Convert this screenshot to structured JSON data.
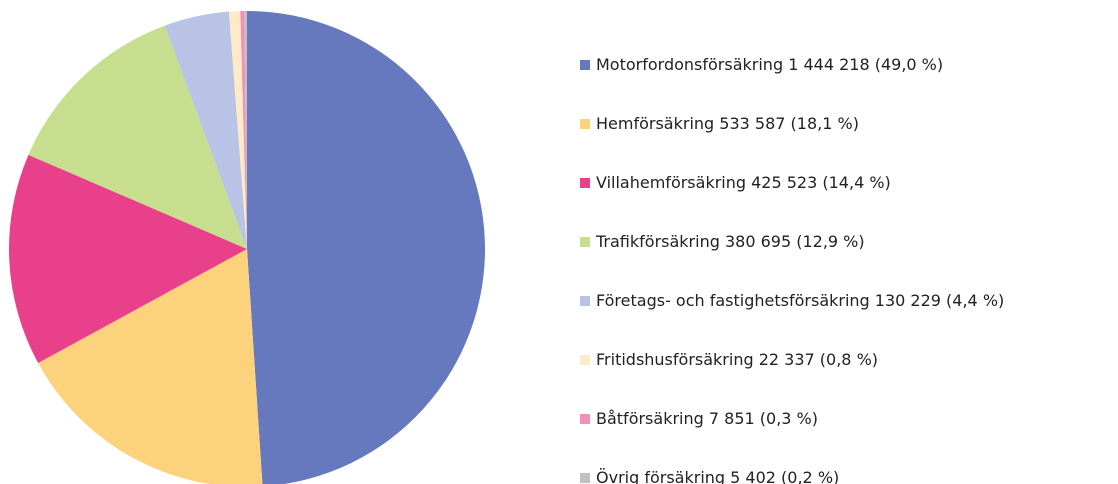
{
  "chart_data": {
    "type": "pie",
    "categories": [
      "Motorfordonsförsäkring",
      "Hemförsäkring",
      "Villahemförsäkring",
      "Trafikförsäkring",
      "Företags- och fastighetsförsäkring",
      "Fritidshusförsäkring",
      "Båtförsäkring",
      "Övrig försäkring"
    ],
    "values": [
      1444218,
      533587,
      425523,
      380695,
      130229,
      22337,
      7851,
      5402
    ],
    "value_labels": [
      "1 444 218 (49,0 %)",
      "533 587 (18,1 %)",
      "425 523 (14,4 %)",
      "380 695 (12,9 %)",
      "130 229 (4,4 %)",
      "22 337 (0,8 %)",
      "7 851 (0,3 %)",
      "5 402 (0,2 %)"
    ],
    "colors": [
      "#6679be",
      "#fdd27c",
      "#e8408a",
      "#c6de8e",
      "#b9c3e5",
      "#fdebc8",
      "#f290b9",
      "#c0c0c0"
    ],
    "legend": "right"
  }
}
